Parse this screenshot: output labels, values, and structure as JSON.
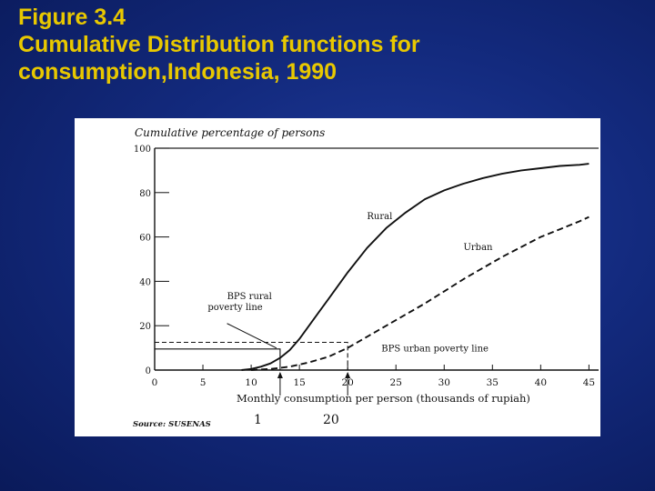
{
  "slide": {
    "title_lines": [
      "Figure 3.4",
      "Cumulative Distribution functions for",
      "consumption,Indonesia, 1990"
    ]
  },
  "chart_data": {
    "type": "line",
    "title": "",
    "ylabel": "Cumulative percentage of persons",
    "xlabel": "Monthly consumption per person (thousands of rupiah)",
    "xlim": [
      0,
      46
    ],
    "ylim": [
      0,
      100
    ],
    "x_ticks": [
      "0",
      "5",
      "10",
      "15",
      "20",
      "25",
      "30",
      "35",
      "40",
      "45"
    ],
    "y_ticks": [
      "0",
      "20",
      "40",
      "60",
      "80",
      "100"
    ],
    "series": [
      {
        "name": "Rural",
        "style": "solid",
        "color": "#111111",
        "x": [
          9,
          10,
          11,
          12,
          13,
          14,
          15,
          16,
          17,
          18,
          20,
          22,
          24,
          26,
          28,
          30,
          32,
          34,
          36,
          38,
          40,
          42,
          44,
          45
        ],
        "y": [
          0,
          0.5,
          1.5,
          3,
          5.5,
          9,
          14,
          20,
          26,
          32,
          44,
          55,
          64,
          71,
          77,
          81,
          84,
          86.5,
          88.5,
          90,
          91,
          92,
          92.5,
          93
        ]
      },
      {
        "name": "Urban",
        "style": "dashed",
        "color": "#111111",
        "x": [
          10,
          12,
          14,
          16,
          18,
          20,
          22,
          24,
          26,
          28,
          30,
          32,
          34,
          36,
          38,
          40,
          42,
          44,
          45
        ],
        "y": [
          0,
          0.5,
          1.5,
          3.5,
          6,
          10,
          15,
          20,
          25,
          30,
          35.5,
          41,
          46,
          51,
          55.5,
          60,
          63.5,
          67,
          69
        ]
      }
    ],
    "annotations": [
      {
        "text": "Rural",
        "x": 22,
        "y": 68
      },
      {
        "text": "Urban",
        "x": 32,
        "y": 54
      },
      {
        "text": "BPS rural",
        "x": 7.5,
        "y": 32
      },
      {
        "text": "poverty line",
        "x": 5.5,
        "y": 27
      },
      {
        "text": "BPS urban poverty line",
        "x": 23.5,
        "y": 8.5
      }
    ],
    "reference_lines": [
      {
        "name": "BPS rural poverty line",
        "x": 13,
        "y": 9.5
      },
      {
        "name": "BPS urban poverty line",
        "x": 20,
        "y": 12.5
      }
    ],
    "source_text": "Source: SUSENAS",
    "handwritten_marks": [
      "1",
      "20"
    ]
  }
}
